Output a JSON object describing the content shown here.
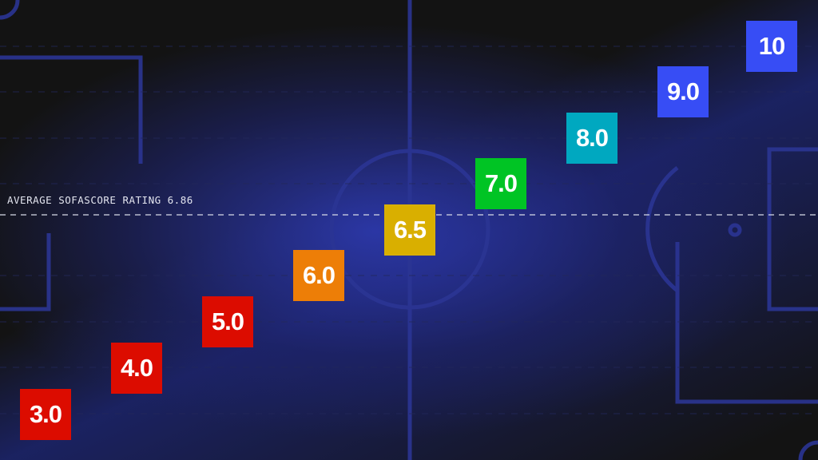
{
  "average": {
    "label": "AVERAGE SOFASCORE RATING 6.86",
    "value": 6.86
  },
  "ratings": [
    {
      "label": "3.0",
      "color": "#dc0c00"
    },
    {
      "label": "4.0",
      "color": "#dc0c00"
    },
    {
      "label": "5.0",
      "color": "#dc0c00"
    },
    {
      "label": "6.0",
      "color": "#ed7e07"
    },
    {
      "label": "6.5",
      "color": "#d9af00"
    },
    {
      "label": "7.0",
      "color": "#00c424"
    },
    {
      "label": "8.0",
      "color": "#00a8c0"
    },
    {
      "label": "9.0",
      "color": "#374df5"
    },
    {
      "label": "10",
      "color": "#374df5"
    }
  ]
}
